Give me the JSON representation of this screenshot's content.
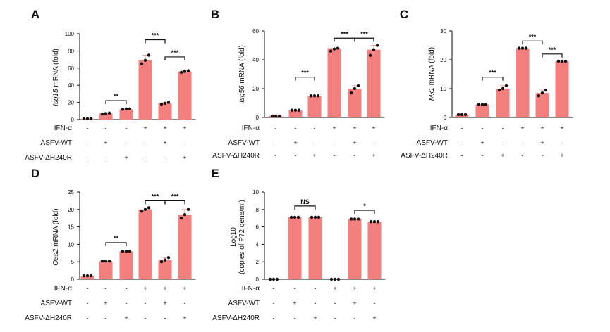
{
  "colors": {
    "bar": "#f47f7f",
    "error": "#f6a6a6",
    "dot": "#111111",
    "axis": "#111111"
  },
  "chart_data": [
    {
      "type": "bar",
      "panel": "A",
      "ylabel_italic": "Isg15",
      "ylabel_rest": " mRNA (fold)",
      "ylim": [
        0,
        100
      ],
      "yticks": [
        0,
        20,
        40,
        60,
        80,
        100
      ],
      "values": [
        1,
        7,
        12,
        69,
        19,
        56
      ],
      "points": [
        [
          1,
          1,
          1
        ],
        [
          6.5,
          7,
          7.5
        ],
        [
          12,
          12.5,
          12.5
        ],
        [
          65,
          69,
          75
        ],
        [
          18,
          19,
          20
        ],
        [
          55,
          56,
          57
        ]
      ],
      "conditions": [
        {
          "label": "IFN-α",
          "signs": [
            "-",
            "-",
            "-",
            "+",
            "+",
            "+"
          ]
        },
        {
          "label": "ASFV-WT",
          "signs": [
            "-",
            "+",
            "-",
            "-",
            "+",
            "-"
          ]
        },
        {
          "label": "ASFV-ΔH240R",
          "signs": [
            "-",
            "-",
            "+",
            "-",
            "-",
            "+"
          ]
        }
      ],
      "comparisons": [
        {
          "from": 1,
          "to": 2,
          "label": "**",
          "y": 22
        },
        {
          "from": 3,
          "to": 4,
          "label": "***",
          "y": 93
        },
        {
          "from": 4,
          "to": 5,
          "label": "***",
          "y": 73
        }
      ]
    },
    {
      "type": "bar",
      "panel": "B",
      "ylabel_italic": "Isg56",
      "ylabel_rest": " mRNA (fold)",
      "ylim": [
        0,
        60
      ],
      "yticks": [
        0,
        20,
        40,
        60
      ],
      "values": [
        1,
        5,
        15,
        48,
        20,
        47
      ],
      "points": [
        [
          1,
          1,
          1
        ],
        [
          5,
          5,
          5
        ],
        [
          15,
          15,
          15
        ],
        [
          46,
          47.5,
          48
        ],
        [
          17,
          20,
          22
        ],
        [
          43,
          47,
          50
        ]
      ],
      "conditions": [
        {
          "label": "IFN-α",
          "signs": [
            "-",
            "-",
            "-",
            "+",
            "+",
            "+"
          ]
        },
        {
          "label": "ASFV-WT",
          "signs": [
            "-",
            "+",
            "-",
            "-",
            "+",
            "-"
          ]
        },
        {
          "label": "ASFV-ΔH240R",
          "signs": [
            "-",
            "-",
            "+",
            "-",
            "-",
            "+"
          ]
        }
      ],
      "comparisons": [
        {
          "from": 1,
          "to": 2,
          "label": "***",
          "y": 28
        },
        {
          "from": 3,
          "to": 4,
          "label": "***",
          "y": 55
        },
        {
          "from": 4,
          "to": 5,
          "label": "***",
          "y": 55
        }
      ]
    },
    {
      "type": "bar",
      "panel": "C",
      "ylabel_italic": "Mx1",
      "ylabel_rest": " mRNA (fold)",
      "ylim": [
        0,
        30
      ],
      "yticks": [
        0,
        10,
        20,
        30
      ],
      "values": [
        1,
        4.5,
        10,
        24,
        8.5,
        19.5
      ],
      "points": [
        [
          1,
          1,
          1
        ],
        [
          4.5,
          4.5,
          4.5
        ],
        [
          9.5,
          10,
          11
        ],
        [
          24,
          24,
          24
        ],
        [
          7.5,
          8.5,
          9.5
        ],
        [
          19.5,
          19.5,
          19.5
        ]
      ],
      "conditions": [
        {
          "label": "IFN-α",
          "signs": [
            "-",
            "-",
            "-",
            "+",
            "+",
            "+"
          ]
        },
        {
          "label": "ASFV-WT",
          "signs": [
            "-",
            "+",
            "-",
            "-",
            "+",
            "-"
          ]
        },
        {
          "label": "ASFV-ΔH240R",
          "signs": [
            "-",
            "-",
            "+",
            "-",
            "-",
            "+"
          ]
        }
      ],
      "comparisons": [
        {
          "from": 1,
          "to": 2,
          "label": "***",
          "y": 14
        },
        {
          "from": 3,
          "to": 4,
          "label": "***",
          "y": 26.5
        },
        {
          "from": 4,
          "to": 5,
          "label": "***",
          "y": 22
        }
      ]
    },
    {
      "type": "bar",
      "panel": "D",
      "ylabel_italic": "Oas2",
      "ylabel_rest": " mRNA (fold)",
      "ylim": [
        0,
        25
      ],
      "yticks": [
        0,
        5,
        10,
        15,
        20,
        25
      ],
      "values": [
        1,
        5.2,
        8,
        20,
        5.5,
        18.5
      ],
      "points": [
        [
          1,
          1,
          1
        ],
        [
          5.2,
          5.2,
          5.2
        ],
        [
          8,
          8,
          8
        ],
        [
          19.5,
          20,
          20.5
        ],
        [
          5,
          5.5,
          6.2
        ],
        [
          17.5,
          18.5,
          20
        ]
      ],
      "conditions": [
        {
          "label": "IFN-α",
          "signs": [
            "-",
            "-",
            "-",
            "+",
            "+",
            "+"
          ]
        },
        {
          "label": "ASFV-WT",
          "signs": [
            "-",
            "+",
            "-",
            "-",
            "+",
            "-"
          ]
        },
        {
          "label": "ASFV-ΔH240R",
          "signs": [
            "-",
            "-",
            "+",
            "-",
            "-",
            "+"
          ]
        }
      ],
      "comparisons": [
        {
          "from": 1,
          "to": 2,
          "label": "**",
          "y": 10.5
        },
        {
          "from": 3,
          "to": 4,
          "label": "***",
          "y": 22.5
        },
        {
          "from": 4,
          "to": 5,
          "label": "***",
          "y": 22.5
        }
      ]
    },
    {
      "type": "bar",
      "panel": "E",
      "ylabel_line1": "Log10",
      "ylabel_line2": "(copies of P72 gene/ml)",
      "ylim": [
        0,
        10
      ],
      "yticks": [
        0,
        2,
        4,
        6,
        8,
        10
      ],
      "values": [
        0,
        7.1,
        7.1,
        0,
        6.9,
        6.6
      ],
      "points": [
        [
          0,
          0,
          0
        ],
        [
          7.1,
          7.1,
          7.1
        ],
        [
          7.1,
          7.1,
          7.1
        ],
        [
          0,
          0,
          0
        ],
        [
          6.9,
          6.9,
          6.9
        ],
        [
          6.6,
          6.6,
          6.6
        ]
      ],
      "conditions": [
        {
          "label": "IFN-α",
          "signs": [
            "-",
            "-",
            "-",
            "+",
            "+",
            "+"
          ]
        },
        {
          "label": "ASFV-WT",
          "signs": [
            "-",
            "+",
            "-",
            "-",
            "+",
            "-"
          ]
        },
        {
          "label": "ASFV-ΔH240R",
          "signs": [
            "-",
            "-",
            "+",
            "-",
            "-",
            "+"
          ]
        }
      ],
      "comparisons": [
        {
          "from": 1,
          "to": 2,
          "label": "NS",
          "y": 8.4
        },
        {
          "from": 4,
          "to": 5,
          "label": "*",
          "y": 7.9
        }
      ]
    }
  ]
}
